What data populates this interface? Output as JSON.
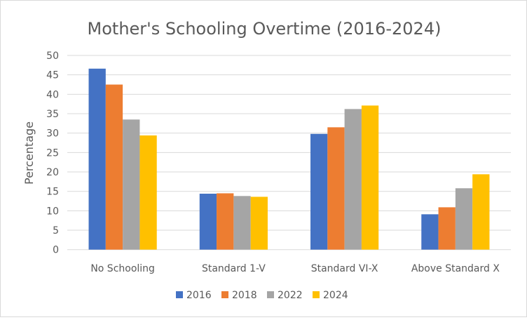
{
  "chart_data": {
    "type": "bar",
    "title": "Mother's Schooling Overtime (2016-2024)",
    "xlabel": "",
    "ylabel": "Percentage",
    "ylim": [
      0,
      50
    ],
    "yticks": [
      "0",
      "5",
      "10",
      "15",
      "20",
      "25",
      "30",
      "35",
      "40",
      "45",
      "50"
    ],
    "grid": true,
    "legend_position": "bottom",
    "categories": [
      "No Schooling",
      "Standard 1-V",
      "Standard VI-X",
      "Above Standard X"
    ],
    "series": [
      {
        "name": "2016",
        "color": "#4472c4",
        "values": [
          46.6,
          14.4,
          29.8,
          9.1
        ]
      },
      {
        "name": "2018",
        "color": "#ed7d31",
        "values": [
          42.5,
          14.5,
          31.5,
          10.9
        ]
      },
      {
        "name": "2022",
        "color": "#a5a5a5",
        "values": [
          33.5,
          13.8,
          36.2,
          15.8
        ]
      },
      {
        "name": "2024",
        "color": "#ffc000",
        "values": [
          29.4,
          13.6,
          37.1,
          19.4
        ]
      }
    ]
  }
}
